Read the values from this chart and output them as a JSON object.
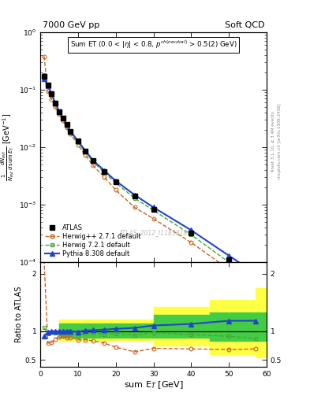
{
  "title_left": "7000 GeV pp",
  "title_right": "Soft QCD",
  "annotation": "Sum ET (0.0 < |η| < 0.8, p^{ch(neutral)} > 0.5(2) GeV)",
  "watermark": "ATLAS_2012_I1183818",
  "right_label_top": "Rivet 3.1.10, ≥ 3.4M events",
  "right_label_bot": "mcplots.cern.ch [arXiv:1306.3436]",
  "xlabel": "sum E$_T$ [GeV]",
  "ylabel_ratio": "Ratio to ATLAS",
  "xlim": [
    0,
    60
  ],
  "ylim_main": [
    0.0001,
    1.0
  ],
  "ylim_ratio": [
    0.38,
    2.2
  ],
  "atlas_x": [
    1,
    2,
    3,
    4,
    5,
    6,
    7,
    8,
    10,
    12,
    14,
    17,
    20,
    25,
    30,
    40,
    50,
    57
  ],
  "atlas_y": [
    0.17,
    0.12,
    0.085,
    0.058,
    0.042,
    0.032,
    0.025,
    0.019,
    0.013,
    0.0085,
    0.0058,
    0.0038,
    0.0025,
    0.0014,
    0.00082,
    0.00032,
    0.00011,
    5.5e-05
  ],
  "herwig_x": [
    1,
    2,
    3,
    4,
    5,
    6,
    7,
    8,
    10,
    12,
    14,
    17,
    20,
    25,
    30,
    40,
    50,
    57
  ],
  "herwig_y": [
    0.38,
    0.095,
    0.068,
    0.05,
    0.038,
    0.029,
    0.022,
    0.017,
    0.011,
    0.0072,
    0.0048,
    0.003,
    0.0018,
    0.0009,
    0.00057,
    0.00022,
    7.5e-05,
    3.8e-05
  ],
  "herwig7_x": [
    1,
    2,
    3,
    4,
    5,
    6,
    7,
    8,
    10,
    12,
    14,
    17,
    20,
    25,
    30,
    40,
    50,
    57
  ],
  "herwig7_y": [
    0.18,
    0.115,
    0.083,
    0.056,
    0.041,
    0.031,
    0.024,
    0.018,
    0.012,
    0.0082,
    0.0056,
    0.0036,
    0.0024,
    0.0013,
    0.0008,
    0.0003,
    0.0001,
    4.8e-05
  ],
  "pythia_x": [
    1,
    2,
    3,
    4,
    5,
    6,
    7,
    8,
    10,
    12,
    14,
    17,
    20,
    25,
    30,
    40,
    50,
    57
  ],
  "pythia_y": [
    0.155,
    0.118,
    0.085,
    0.058,
    0.042,
    0.032,
    0.025,
    0.019,
    0.0128,
    0.0086,
    0.0059,
    0.0039,
    0.0026,
    0.00148,
    0.0009,
    0.00036,
    0.00013,
    6.5e-05
  ],
  "herwig_ratio": [
    2.24,
    0.79,
    0.8,
    0.86,
    0.9,
    0.91,
    0.88,
    0.89,
    0.85,
    0.85,
    0.83,
    0.79,
    0.72,
    0.64,
    0.7,
    0.69,
    0.68,
    0.69
  ],
  "herwig7_ratio": [
    1.06,
    0.96,
    0.98,
    0.97,
    0.98,
    0.97,
    0.96,
    0.95,
    0.92,
    0.965,
    0.965,
    0.947,
    0.96,
    0.93,
    0.975,
    0.938,
    0.91,
    0.873
  ],
  "pythia_ratio": [
    0.91,
    0.98,
    1.0,
    1.0,
    1.0,
    1.0,
    1.0,
    1.0,
    0.985,
    1.012,
    1.017,
    1.026,
    1.04,
    1.057,
    1.098,
    1.125,
    1.18,
    1.18
  ],
  "yellow_steps_x": [
    5,
    20,
    30,
    45,
    57,
    60
  ],
  "yellow_steps_lo": [
    0.83,
    0.83,
    0.75,
    0.6,
    0.55,
    0.55
  ],
  "yellow_steps_hi": [
    1.2,
    1.2,
    1.42,
    1.55,
    1.75,
    1.75
  ],
  "green_steps_x": [
    5,
    20,
    30,
    45,
    57,
    60
  ],
  "green_steps_lo": [
    0.88,
    0.88,
    0.88,
    0.83,
    0.83,
    0.83
  ],
  "green_steps_hi": [
    1.13,
    1.13,
    1.28,
    1.32,
    1.32,
    1.32
  ],
  "atlas_color": "#000000",
  "herwig_color": "#cc6622",
  "herwig7_color": "#44aa33",
  "pythia_color": "#2244cc",
  "yellow_color": "#ffff44",
  "green_color": "#44cc44",
  "legend_entries": [
    "ATLAS",
    "Herwig++ 2.7.1 default",
    "Herwig 7.2.1 default",
    "Pythia 8.308 default"
  ]
}
